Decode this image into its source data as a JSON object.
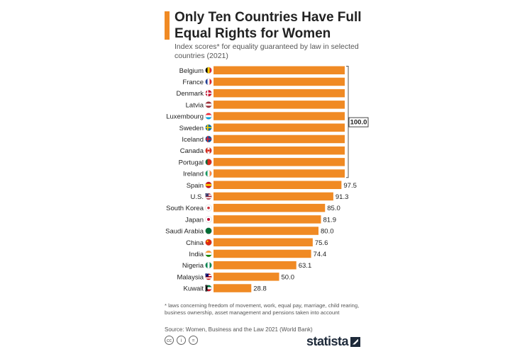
{
  "title": "Only Ten Countries Have Full Equal Rights for Women",
  "subtitle": "Index scores* for equality guaranteed by law in selected countries (2021)",
  "footnote": "* laws concerning freedom of movement, work, equal pay, marriage, child rearing, business ownership, asset management and pensions taken into account",
  "source": "Source: Women, Business and the Law 2021 (World Bank)",
  "brand": "statista",
  "license_icons": [
    "cc",
    "i",
    "="
  ],
  "colors": {
    "bar": "#f08a24",
    "accent": "#f08a24",
    "text": "#222222"
  },
  "chart_data": {
    "type": "bar",
    "orientation": "horizontal",
    "title": "Only Ten Countries Have Full Equal Rights for Women",
    "subtitle": "Index scores* for equality guaranteed by law in selected countries (2021)",
    "categories": [
      "Belgium",
      "France",
      "Denmark",
      "Latvia",
      "Luxembourg",
      "Sweden",
      "Iceland",
      "Canada",
      "Portugal",
      "Ireland",
      "Spain",
      "U.S.",
      "South Korea",
      "Japan",
      "Saudi Arabia",
      "China",
      "India",
      "Nigeria",
      "Malaysia",
      "Kuwait"
    ],
    "values": [
      100,
      100,
      100,
      100,
      100,
      100,
      100,
      100,
      100,
      100,
      97.5,
      91.3,
      85.0,
      81.9,
      80.0,
      75.6,
      74.4,
      63.1,
      50.0,
      28.8
    ],
    "labels": [
      "",
      "",
      "",
      "",
      "",
      "",
      "",
      "",
      "",
      "",
      "97.5",
      "91.3",
      "85.0",
      "81.9",
      "80.0",
      "75.6",
      "74.4",
      "63.1",
      "50.0",
      "28.8"
    ],
    "group_label": "100.0",
    "flags": [
      "be",
      "fr",
      "dk",
      "lv",
      "lu",
      "se",
      "is",
      "ca",
      "pt",
      "ie",
      "es",
      "us",
      "kr",
      "jp",
      "sa",
      "cn",
      "in",
      "ng",
      "my",
      "kw"
    ],
    "xlim": [
      0,
      100
    ]
  }
}
